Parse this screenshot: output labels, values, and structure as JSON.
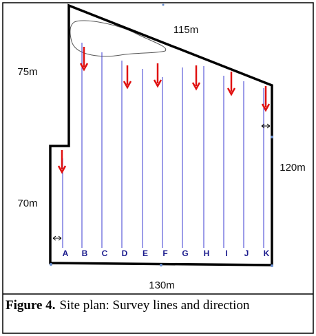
{
  "figure": {
    "dimensions": [
      "115m",
      "75m",
      "120m",
      "70m",
      "130m"
    ],
    "survey_lines": [
      "A",
      "B",
      "C",
      "D",
      "E",
      "F",
      "G",
      "H",
      "I",
      "J",
      "K"
    ],
    "caption": {
      "label": "Figure 4.",
      "text": "Site plan: Survey lines and direction"
    }
  }
}
